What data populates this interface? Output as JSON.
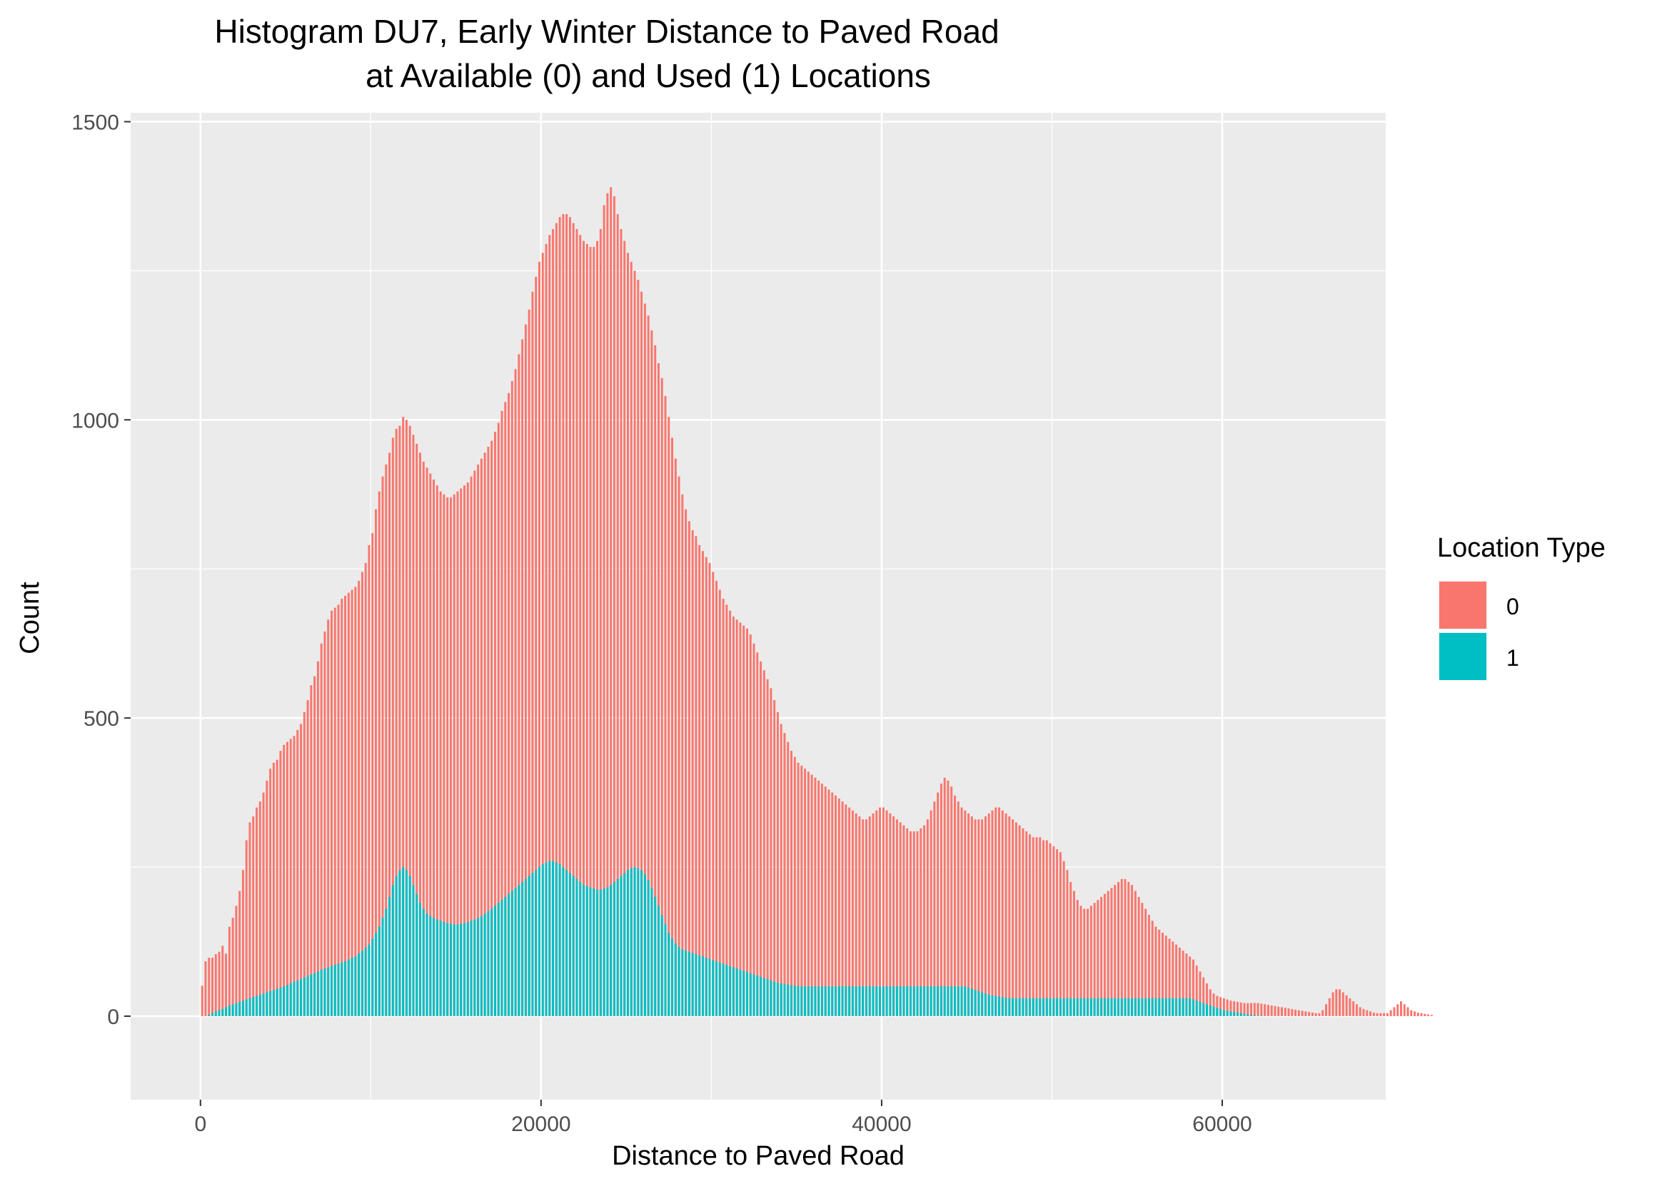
{
  "chart_data": {
    "type": "bar",
    "title": "Histogram DU7, Early Winter Distance to Paved Road",
    "subtitle": "at Available (0) and Used (1) Locations",
    "xlabel": "Distance to Paved Road",
    "ylabel": "Count",
    "xlim": [
      -4100,
      69600
    ],
    "ylim": [
      -140,
      1515
    ],
    "x_ticks": [
      0,
      20000,
      40000,
      60000
    ],
    "x_tick_labels": [
      "0",
      "20000",
      "40000",
      "60000"
    ],
    "y_ticks": [
      0,
      500,
      1000,
      1500
    ],
    "y_tick_labels": [
      "0",
      "500",
      "1000",
      "1500"
    ],
    "grid": true,
    "legend": {
      "title": "Location Type",
      "position": "right",
      "entries": [
        {
          "label": "0",
          "color": "#f8766d"
        },
        {
          "label": "1",
          "color": "#00bfc4"
        }
      ]
    },
    "bin_width": 200,
    "x_start": 0,
    "series": [
      {
        "name": "0",
        "color": "#f8766d",
        "values": [
          51,
          92,
          98,
          98,
          104,
          108,
          118,
          105,
          150,
          165,
          185,
          210,
          245,
          295,
          325,
          335,
          350,
          360,
          375,
          395,
          415,
          425,
          430,
          445,
          455,
          460,
          465,
          470,
          480,
          490,
          510,
          530,
          555,
          570,
          595,
          625,
          645,
          665,
          680,
          685,
          690,
          700,
          705,
          710,
          715,
          720,
          730,
          745,
          760,
          790,
          810,
          850,
          880,
          905,
          925,
          945,
          970,
          985,
          990,
          1005,
          1000,
          990,
          975,
          960,
          945,
          930,
          920,
          910,
          900,
          890,
          880,
          875,
          870,
          870,
          875,
          880,
          885,
          890,
          895,
          905,
          915,
          925,
          935,
          945,
          955,
          965,
          980,
          995,
          1015,
          1030,
          1045,
          1065,
          1085,
          1110,
          1135,
          1160,
          1185,
          1215,
          1240,
          1265,
          1280,
          1295,
          1310,
          1320,
          1330,
          1340,
          1345,
          1345,
          1340,
          1330,
          1320,
          1310,
          1300,
          1295,
          1290,
          1290,
          1300,
          1320,
          1360,
          1380,
          1390,
          1375,
          1345,
          1320,
          1300,
          1280,
          1265,
          1250,
          1235,
          1215,
          1195,
          1175,
          1150,
          1125,
          1095,
          1070,
          1040,
          1005,
          970,
          935,
          905,
          875,
          850,
          830,
          815,
          805,
          790,
          780,
          770,
          760,
          745,
          730,
          715,
          700,
          690,
          680,
          670,
          665,
          660,
          655,
          650,
          640,
          625,
          610,
          595,
          580,
          565,
          550,
          530,
          510,
          490,
          475,
          460,
          445,
          435,
          425,
          420,
          415,
          410,
          405,
          400,
          395,
          390,
          385,
          380,
          375,
          370,
          365,
          360,
          355,
          350,
          345,
          340,
          335,
          330,
          330,
          335,
          340,
          345,
          350,
          350,
          345,
          340,
          335,
          330,
          325,
          320,
          315,
          310,
          310,
          310,
          315,
          320,
          330,
          345,
          360,
          375,
          390,
          400,
          395,
          385,
          370,
          360,
          350,
          345,
          340,
          335,
          330,
          330,
          330,
          335,
          340,
          345,
          350,
          350,
          345,
          340,
          335,
          330,
          325,
          320,
          315,
          310,
          305,
          300,
          300,
          300,
          295,
          295,
          290,
          285,
          280,
          275,
          260,
          245,
          225,
          210,
          195,
          185,
          180,
          180,
          185,
          190,
          195,
          200,
          205,
          210,
          215,
          220,
          225,
          230,
          230,
          225,
          220,
          210,
          200,
          190,
          180,
          170,
          160,
          150,
          145,
          140,
          135,
          130,
          125,
          120,
          115,
          110,
          105,
          100,
          95,
          85,
          75,
          65,
          55,
          45,
          38,
          34,
          32,
          30,
          28,
          26,
          25,
          24,
          23,
          22,
          22,
          22,
          22,
          22,
          21,
          20,
          19,
          18,
          17,
          16,
          15,
          14,
          13,
          12,
          11,
          10,
          9,
          8,
          7,
          6,
          5,
          5,
          10,
          20,
          30,
          40,
          45,
          45,
          40,
          35,
          30,
          25,
          20,
          15,
          12,
          10,
          8,
          6,
          5,
          5,
          5,
          5,
          10,
          15,
          20,
          25,
          20,
          15,
          10,
          8,
          6,
          5,
          4,
          3,
          2
        ]
      },
      {
        "name": "1",
        "color": "#00bfc4",
        "values": [
          0,
          0,
          2,
          5,
          8,
          10,
          12,
          15,
          18,
          20,
          22,
          24,
          26,
          28,
          30,
          32,
          34,
          36,
          38,
          40,
          42,
          44,
          46,
          48,
          50,
          52,
          55,
          58,
          60,
          62,
          65,
          68,
          70,
          72,
          75,
          78,
          80,
          82,
          84,
          86,
          88,
          90,
          92,
          95,
          98,
          100,
          105,
          110,
          115,
          120,
          130,
          140,
          150,
          165,
          180,
          200,
          220,
          235,
          245,
          250,
          245,
          235,
          220,
          205,
          190,
          180,
          172,
          168,
          165,
          162,
          160,
          158,
          156,
          155,
          154,
          154,
          155,
          156,
          158,
          160,
          162,
          165,
          168,
          172,
          176,
          180,
          185,
          190,
          195,
          200,
          205,
          210,
          215,
          220,
          225,
          230,
          235,
          240,
          245,
          250,
          255,
          258,
          260,
          260,
          258,
          255,
          250,
          245,
          240,
          235,
          230,
          225,
          220,
          218,
          216,
          214,
          212,
          212,
          214,
          216,
          220,
          225,
          230,
          235,
          240,
          245,
          248,
          250,
          248,
          245,
          238,
          228,
          215,
          200,
          185,
          170,
          155,
          140,
          130,
          122,
          116,
          112,
          110,
          108,
          106,
          104,
          102,
          100,
          98,
          96,
          94,
          92,
          90,
          88,
          86,
          84,
          82,
          80,
          78,
          76,
          74,
          72,
          70,
          68,
          66,
          64,
          62,
          60,
          58,
          56,
          55,
          54,
          53,
          52,
          51,
          50,
          50,
          50,
          50,
          50,
          50,
          50,
          50,
          50,
          50,
          50,
          50,
          50,
          50,
          50,
          50,
          50,
          50,
          50,
          50,
          50,
          50,
          50,
          50,
          50,
          50,
          50,
          50,
          50,
          50,
          50,
          50,
          50,
          50,
          50,
          50,
          50,
          50,
          50,
          50,
          50,
          50,
          50,
          50,
          50,
          50,
          50,
          50,
          50,
          50,
          48,
          46,
          44,
          42,
          40,
          38,
          36,
          35,
          34,
          33,
          32,
          31,
          30,
          30,
          30,
          30,
          30,
          30,
          30,
          30,
          30,
          30,
          30,
          30,
          30,
          30,
          30,
          30,
          30,
          30,
          30,
          30,
          30,
          30,
          30,
          30,
          30,
          30,
          30,
          30,
          30,
          30,
          30,
          30,
          30,
          30,
          30,
          30,
          30,
          30,
          30,
          30,
          30,
          30,
          30,
          30,
          30,
          30,
          30,
          30,
          30,
          30,
          30,
          30,
          30,
          30,
          28,
          26,
          24,
          22,
          20,
          18,
          16,
          14,
          12,
          10,
          9,
          8,
          7,
          6,
          5,
          4,
          3,
          2,
          1,
          1,
          1,
          0,
          0,
          0,
          0,
          0,
          0,
          0,
          0,
          0,
          0,
          0,
          0,
          0,
          0,
          0,
          0,
          0,
          0,
          0,
          0,
          0,
          0,
          0,
          0,
          0,
          0,
          0,
          0,
          0,
          0,
          0,
          0,
          0,
          0,
          0,
          0,
          0,
          0,
          0,
          0,
          0,
          0,
          0,
          0,
          0,
          0,
          0,
          0,
          0,
          0,
          0,
          0
        ]
      }
    ]
  }
}
